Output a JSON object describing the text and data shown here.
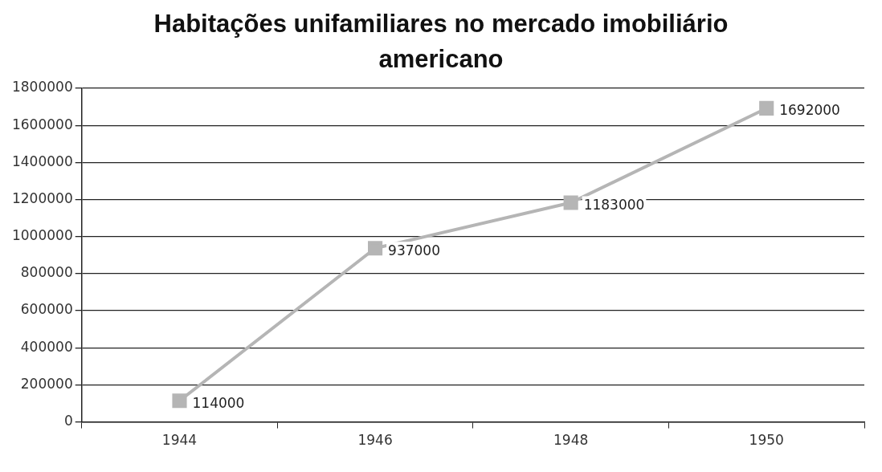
{
  "chart_data": {
    "type": "line",
    "title": "Habitações unifamiliares no mercado imobiliário americano",
    "categories": [
      "1944",
      "1946",
      "1948",
      "1950"
    ],
    "series": [
      {
        "color": "#b5b5b5",
        "values": [
          114000,
          937000,
          1183000,
          1692000
        ]
      }
    ],
    "ylim": [
      0,
      1800000
    ],
    "yticks": [
      0,
      200000,
      400000,
      600000,
      800000,
      1000000,
      1200000,
      1400000,
      1600000,
      1800000
    ],
    "grid": "y",
    "legend": false,
    "marker": "square",
    "line_style": "solid",
    "data_labels": true
  }
}
